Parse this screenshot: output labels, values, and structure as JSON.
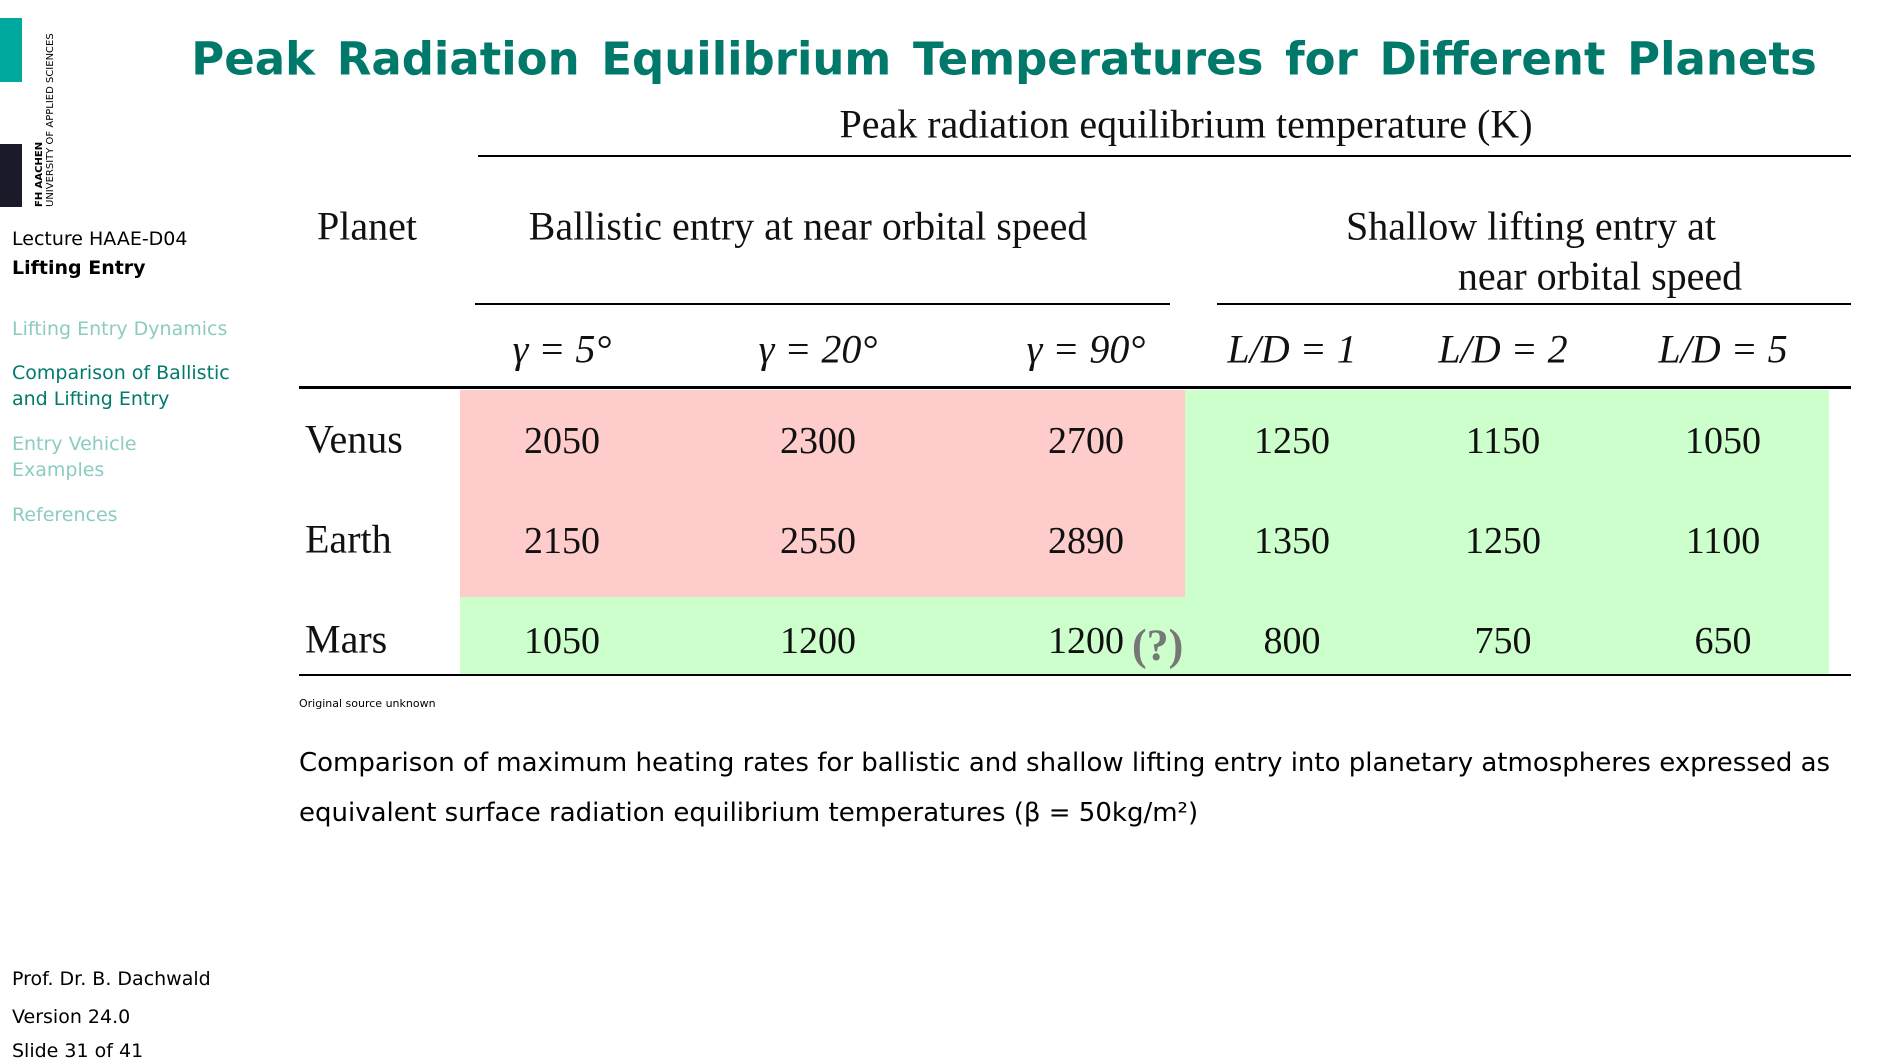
{
  "sidebar": {
    "logo_name": "FH AACHEN",
    "logo_subtitle": "UNIVERSITY OF APPLIED SCIENCES",
    "lecture": "Lecture HAAE-D04",
    "topic": "Lifting Entry",
    "nav": [
      "Lifting Entry Dynamics",
      "Comparison of Ballistic and Lifting Entry",
      "Entry Vehicle Examples",
      "References"
    ],
    "author": "Prof. Dr. B. Dachwald",
    "version": "Version 24.0",
    "slide": "Slide 31 of 41"
  },
  "header": {
    "title": "Peak Radiation Equilibrium Temperatures for Different Planets"
  },
  "table": {
    "super_header": "Peak radiation equilibrium temperature (K)",
    "row_header": "Planet",
    "groups": [
      "Ballistic entry at near orbital speed",
      "Shallow lifting entry at",
      "near orbital speed"
    ],
    "columns": [
      "γ = 5°",
      "γ = 20°",
      "γ = 90°",
      "L/D = 1",
      "L/D = 2",
      "L/D = 5"
    ],
    "rows": [
      [
        "Venus",
        2050,
        2300,
        2700,
        1250,
        1150,
        1050
      ],
      [
        "Earth",
        2150,
        2550,
        2890,
        1350,
        1250,
        1100
      ],
      [
        "Mars",
        1050,
        1200,
        1200,
        800,
        750,
        650
      ]
    ],
    "uncertain_mark": "(?)"
  },
  "source_note": "Original source unknown",
  "caption": "Comparison of maximum heating rates for ballistic and shallow lifting entry into planetary atmospheres expressed as equivalent surface radiation equilibrium temperatures (β = 50kg/m²)"
}
